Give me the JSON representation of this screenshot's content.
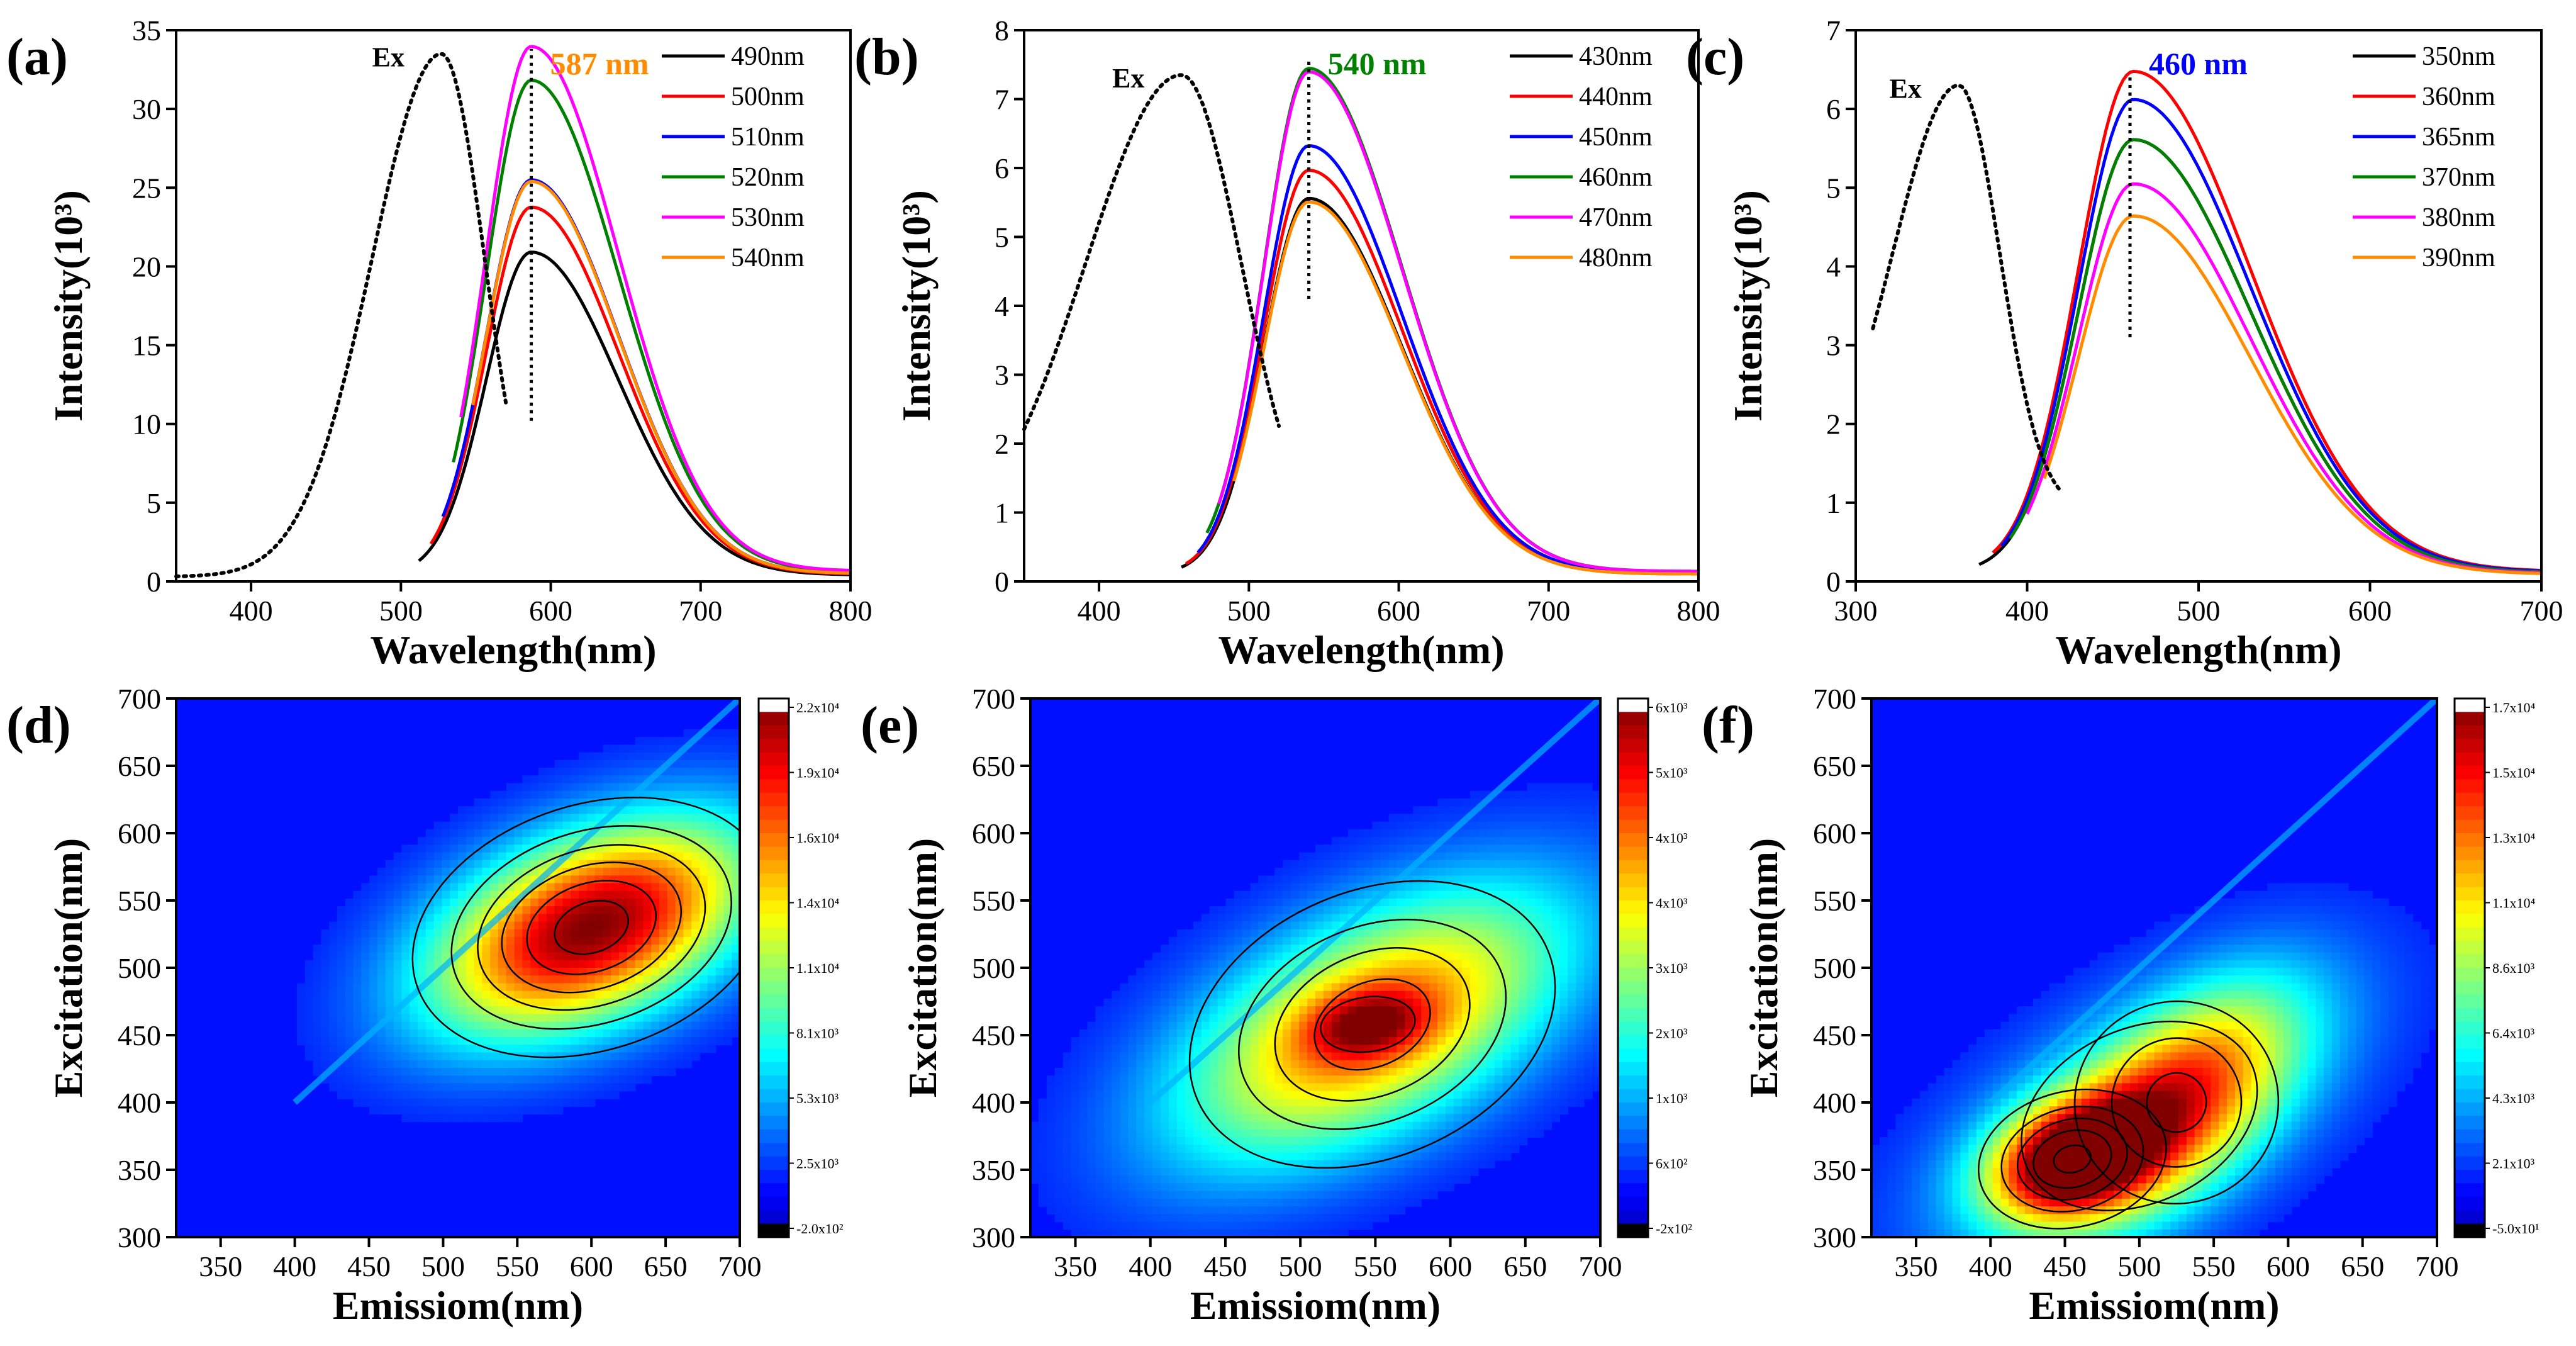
{
  "figure": {
    "background": "#ffffff",
    "series_colors": [
      "#000000",
      "#ff0000",
      "#0000ff",
      "#008000",
      "#ff00ff",
      "#ff8c00"
    ]
  },
  "chart_data": [
    {
      "id": "a",
      "type": "line",
      "panel_label": "(a)",
      "xlabel": "Wavelength(nm)",
      "ylabel": "Intensity(10³)",
      "xlim": [
        350,
        800
      ],
      "ylim": [
        0,
        35
      ],
      "xticks": [
        400,
        500,
        600,
        700,
        800
      ],
      "yticks": [
        0,
        5,
        10,
        15,
        20,
        25,
        30,
        35
      ],
      "grid": false,
      "legend_position": "top-right",
      "excitation": {
        "label": "Ex",
        "peak_x": 527,
        "peak_y": 33.5,
        "width": 29,
        "rise_start": 350,
        "end": 570,
        "base": 0.3,
        "style": "dotted"
      },
      "peak_marker": {
        "x": 587,
        "label": "587 nm",
        "color": "#ff8c00",
        "y_from": 10.2,
        "y_to": 33.8
      },
      "series": [
        {
          "name": "490nm",
          "color": "#000000",
          "peak": 20.5,
          "start": 512
        },
        {
          "name": "500nm",
          "color": "#ff0000",
          "peak": 23.3,
          "start": 520
        },
        {
          "name": "510nm",
          "color": "#0000ff",
          "peak": 25.0,
          "start": 528
        },
        {
          "name": "520nm",
          "color": "#008000",
          "peak": 31.2,
          "start": 535
        },
        {
          "name": "530nm",
          "color": "#ff00ff",
          "peak": 33.3,
          "start": 540
        },
        {
          "name": "540nm",
          "color": "#ff8c00",
          "peak": 24.9,
          "start": 548
        }
      ],
      "emission_shape": {
        "center": 587,
        "sigma_left": 30,
        "sigma_right": 58,
        "end": 800
      }
    },
    {
      "id": "b",
      "type": "line",
      "panel_label": "(b)",
      "xlabel": "Wavelength(nm)",
      "ylabel": "Intensity(10³)",
      "xlim": [
        350,
        800
      ],
      "ylim": [
        0,
        8
      ],
      "xticks": [
        400,
        500,
        600,
        700,
        800
      ],
      "yticks": [
        0,
        1,
        2,
        3,
        4,
        5,
        6,
        7,
        8
      ],
      "grid": false,
      "legend_position": "top-right",
      "excitation": {
        "label": "Ex",
        "peak_x": 455,
        "peak_y": 7.35,
        "width": 40,
        "rise_start": 350,
        "end": 520,
        "base": 0.4,
        "style": "dotted"
      },
      "peak_marker": {
        "x": 540,
        "label": "540 nm",
        "color": "#008000",
        "y_from": 4.1,
        "y_to": 7.6
      },
      "series": [
        {
          "name": "430nm",
          "color": "#000000",
          "peak": 5.45,
          "start": 455
        },
        {
          "name": "440nm",
          "color": "#ff0000",
          "peak": 5.85,
          "start": 458
        },
        {
          "name": "450nm",
          "color": "#0000ff",
          "peak": 6.2,
          "start": 466
        },
        {
          "name": "460nm",
          "color": "#008000",
          "peak": 7.3,
          "start": 472
        },
        {
          "name": "470nm",
          "color": "#ff00ff",
          "peak": 7.25,
          "start": 480
        },
        {
          "name": "480nm",
          "color": "#ff8c00",
          "peak": 5.4,
          "start": 490
        }
      ],
      "emission_shape": {
        "center": 540,
        "sigma_left": 30,
        "sigma_right": 62,
        "end": 800
      }
    },
    {
      "id": "c",
      "type": "line",
      "panel_label": "(c)",
      "xlabel": "Wavelength(nm)",
      "ylabel": "Intensity(10³)",
      "xlim": [
        300,
        700
      ],
      "ylim": [
        0,
        7
      ],
      "xticks": [
        300,
        400,
        500,
        600,
        700
      ],
      "yticks": [
        0,
        1,
        2,
        3,
        4,
        5,
        6,
        7
      ],
      "grid": false,
      "legend_position": "top-right",
      "excitation": {
        "label": "Ex",
        "peak_x": 360,
        "peak_y": 6.3,
        "width": 24,
        "rise_start": 310,
        "end": 420,
        "base": 0.9,
        "style": "dotted"
      },
      "peak_marker": {
        "x": 460,
        "label": "460 nm",
        "color": "#0000ff",
        "y_from": 3.1,
        "y_to": 6.4
      },
      "series": [
        {
          "name": "350nm",
          "color": "#000000",
          "peak": 5.5,
          "start": 372
        },
        {
          "name": "360nm",
          "color": "#ff0000",
          "peak": 6.35,
          "start": 380
        },
        {
          "name": "365nm",
          "color": "#0000ff",
          "peak": 6.0,
          "start": 385
        },
        {
          "name": "370nm",
          "color": "#008000",
          "peak": 5.5,
          "start": 390
        },
        {
          "name": "380nm",
          "color": "#ff00ff",
          "peak": 4.95,
          "start": 400
        },
        {
          "name": "390nm",
          "color": "#ff8c00",
          "peak": 4.55,
          "start": 410
        }
      ],
      "emission_shape": {
        "center": 462,
        "sigma_left": 32,
        "sigma_right": 68,
        "end": 700
      }
    },
    {
      "id": "d",
      "type": "heatmap",
      "panel_label": "(d)",
      "xlabel": "Emissiom(nm)",
      "ylabel": "Excitation(nm)",
      "xlim": [
        320,
        700
      ],
      "ylim": [
        300,
        700
      ],
      "xticks": [
        350,
        400,
        450,
        500,
        550,
        600,
        650,
        700
      ],
      "yticks": [
        300,
        350,
        400,
        450,
        500,
        550,
        600,
        650,
        700
      ],
      "colorbar_ticks": [
        "2.2x10⁴",
        "1.9x10⁴",
        "1.6x10⁴",
        "1.4x10⁴",
        "1.1x10⁴",
        "8.1x10³",
        "5.3x10³",
        "2.5x10³",
        "-2.0x10²"
      ],
      "hotspots": [
        {
          "em": 600,
          "ex": 530,
          "sem": 75,
          "sex": 55,
          "rho": 0.45,
          "amp": 1.0
        }
      ],
      "contours": [
        0.18,
        0.35,
        0.5,
        0.65,
        0.8,
        0.93
      ]
    },
    {
      "id": "e",
      "type": "heatmap",
      "panel_label": "(e)",
      "xlabel": "Emissiom(nm)",
      "ylabel": "Excitation(nm)",
      "xlim": [
        320,
        700
      ],
      "ylim": [
        300,
        700
      ],
      "xticks": [
        350,
        400,
        450,
        500,
        550,
        600,
        650,
        700
      ],
      "yticks": [
        300,
        350,
        400,
        450,
        500,
        550,
        600,
        650,
        700
      ],
      "colorbar_ticks": [
        "6x10³",
        "5x10³",
        "4x10³",
        "4x10³",
        "3x10³",
        "2x10³",
        "1x10³",
        "6x10²",
        "-2x10²"
      ],
      "hotspots": [
        {
          "em": 548,
          "ex": 458,
          "sem": 90,
          "sex": 70,
          "rho": 0.55,
          "amp": 0.75
        },
        {
          "em": 545,
          "ex": 458,
          "sem": 28,
          "sex": 18,
          "rho": 0.2,
          "amp": 0.35
        }
      ],
      "contours": [
        0.18,
        0.35,
        0.5,
        0.65,
        0.8,
        0.93
      ]
    },
    {
      "id": "f",
      "type": "heatmap",
      "panel_label": "(f)",
      "xlabel": "Emissiom(nm)",
      "ylabel": "Excitation(nm)",
      "xlim": [
        320,
        700
      ],
      "ylim": [
        300,
        700
      ],
      "xticks": [
        350,
        400,
        450,
        500,
        550,
        600,
        650,
        700
      ],
      "yticks": [
        300,
        350,
        400,
        450,
        500,
        550,
        600,
        650,
        700
      ],
      "colorbar_ticks": [
        "1.7x10⁴",
        "1.5x10⁴",
        "1.3x10⁴",
        "1.1x10⁴",
        "8.6x10³",
        "6.4x10³",
        "4.3x10³",
        "2.1x10³",
        "-5.0x10¹"
      ],
      "hotspots": [
        {
          "em": 455,
          "ex": 358,
          "sem": 38,
          "sex": 30,
          "rho": 0.3,
          "amp": 0.85
        },
        {
          "em": 525,
          "ex": 400,
          "sem": 55,
          "sex": 60,
          "rho": 0.55,
          "amp": 0.55
        },
        {
          "em": 500,
          "ex": 390,
          "sem": 90,
          "sex": 70,
          "rho": 0.6,
          "amp": 0.35
        }
      ],
      "contours": [
        0.18,
        0.35,
        0.5,
        0.65,
        0.8,
        0.93
      ]
    }
  ]
}
